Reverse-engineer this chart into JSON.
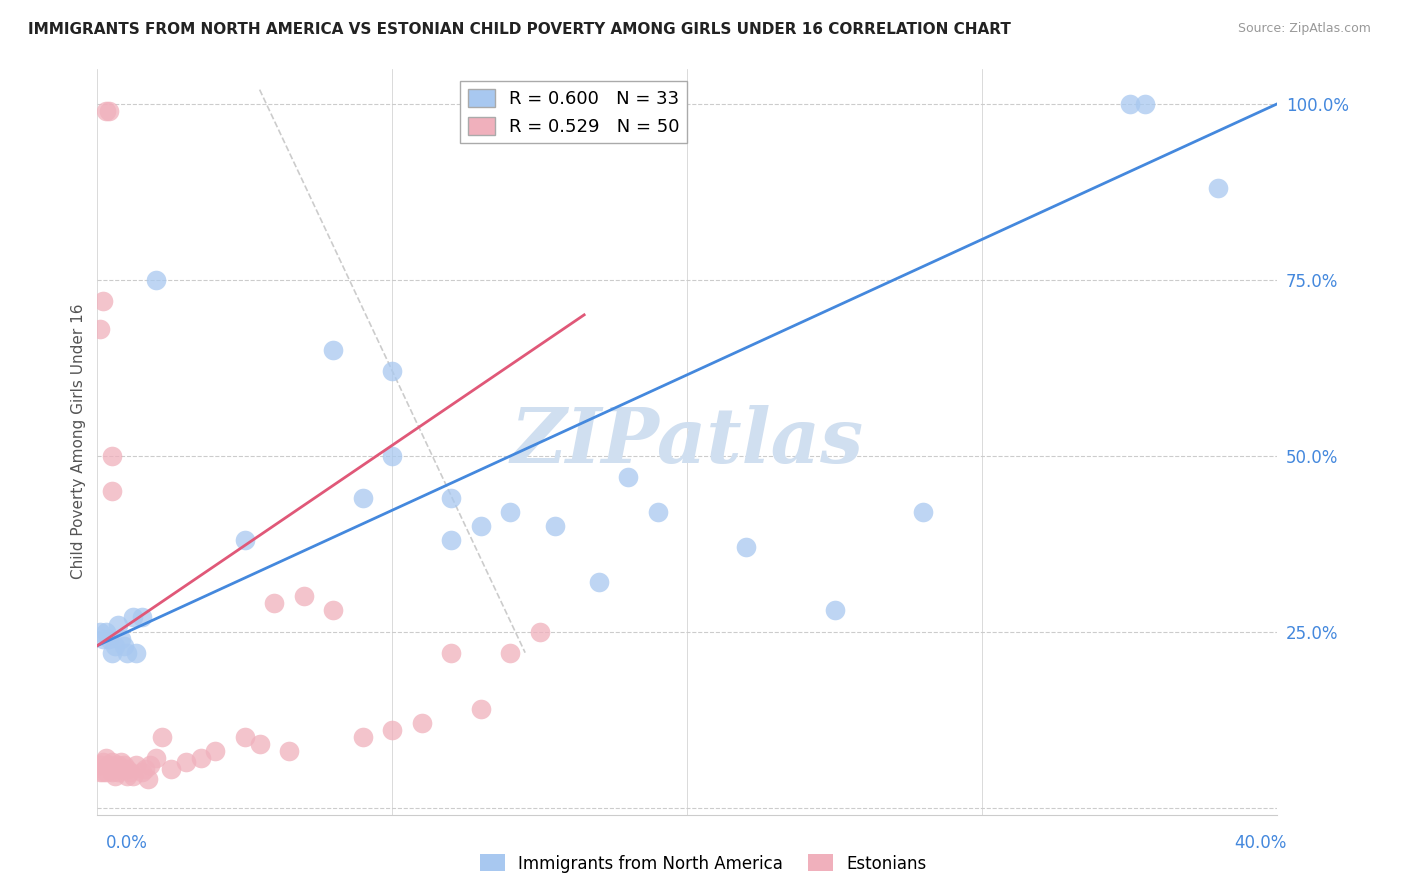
{
  "title": "IMMIGRANTS FROM NORTH AMERICA VS ESTONIAN CHILD POVERTY AMONG GIRLS UNDER 16 CORRELATION CHART",
  "source": "Source: ZipAtlas.com",
  "ylabel": "Child Poverty Among Girls Under 16",
  "ytick_vals": [
    0.0,
    0.25,
    0.5,
    0.75,
    1.0
  ],
  "ytick_labels": [
    "",
    "25.0%",
    "50.0%",
    "75.0%",
    "100.0%"
  ],
  "xlim": [
    0,
    0.4
  ],
  "ylim": [
    -0.01,
    1.05
  ],
  "legend_r_blue": "R = 0.600",
  "legend_n_blue": "N = 33",
  "legend_r_pink": "R = 0.529",
  "legend_n_pink": "N = 50",
  "blue_color": "#a8c8f0",
  "pink_color": "#f0b0bc",
  "blue_line_color": "#4488dd",
  "pink_line_color": "#e05878",
  "diag_line_color": "#cccccc",
  "watermark": "ZIPatlas",
  "watermark_color": "#d0dff0",
  "blue_line_x0": 0.0,
  "blue_line_y0": 0.23,
  "blue_line_x1": 0.4,
  "blue_line_y1": 1.0,
  "pink_line_x0": 0.0,
  "pink_line_y0": 0.23,
  "pink_line_x1": 0.165,
  "pink_line_y1": 0.7,
  "blue_scatter_x": [
    0.001,
    0.002,
    0.003,
    0.004,
    0.005,
    0.006,
    0.007,
    0.008,
    0.009,
    0.01,
    0.012,
    0.013,
    0.015,
    0.02,
    0.05,
    0.08,
    0.09,
    0.1,
    0.12,
    0.13,
    0.14,
    0.155,
    0.17,
    0.18,
    0.19,
    0.22,
    0.25,
    0.28,
    0.35,
    0.355,
    0.38,
    0.1,
    0.12
  ],
  "blue_scatter_y": [
    0.25,
    0.24,
    0.25,
    0.24,
    0.22,
    0.23,
    0.26,
    0.24,
    0.23,
    0.22,
    0.27,
    0.22,
    0.27,
    0.75,
    0.38,
    0.65,
    0.44,
    0.5,
    0.38,
    0.4,
    0.42,
    0.4,
    0.32,
    0.47,
    0.42,
    0.37,
    0.28,
    0.42,
    1.0,
    1.0,
    0.88,
    0.62,
    0.44
  ],
  "pink_scatter_x": [
    0.001,
    0.001,
    0.002,
    0.002,
    0.003,
    0.003,
    0.004,
    0.005,
    0.005,
    0.006,
    0.006,
    0.007,
    0.007,
    0.008,
    0.008,
    0.009,
    0.01,
    0.01,
    0.011,
    0.012,
    0.013,
    0.015,
    0.016,
    0.017,
    0.018,
    0.02,
    0.022,
    0.025,
    0.03,
    0.035,
    0.04,
    0.05,
    0.055,
    0.06,
    0.065,
    0.07,
    0.08,
    0.09,
    0.1,
    0.11,
    0.12,
    0.13,
    0.14,
    0.15,
    0.001,
    0.002,
    0.003,
    0.004,
    0.005,
    0.005
  ],
  "pink_scatter_y": [
    0.05,
    0.06,
    0.05,
    0.065,
    0.05,
    0.07,
    0.06,
    0.05,
    0.065,
    0.055,
    0.045,
    0.06,
    0.05,
    0.055,
    0.065,
    0.06,
    0.045,
    0.055,
    0.05,
    0.045,
    0.06,
    0.05,
    0.055,
    0.04,
    0.06,
    0.07,
    0.1,
    0.055,
    0.065,
    0.07,
    0.08,
    0.1,
    0.09,
    0.29,
    0.08,
    0.3,
    0.28,
    0.1,
    0.11,
    0.12,
    0.22,
    0.14,
    0.22,
    0.25,
    0.68,
    0.72,
    0.99,
    0.99,
    0.5,
    0.45
  ]
}
